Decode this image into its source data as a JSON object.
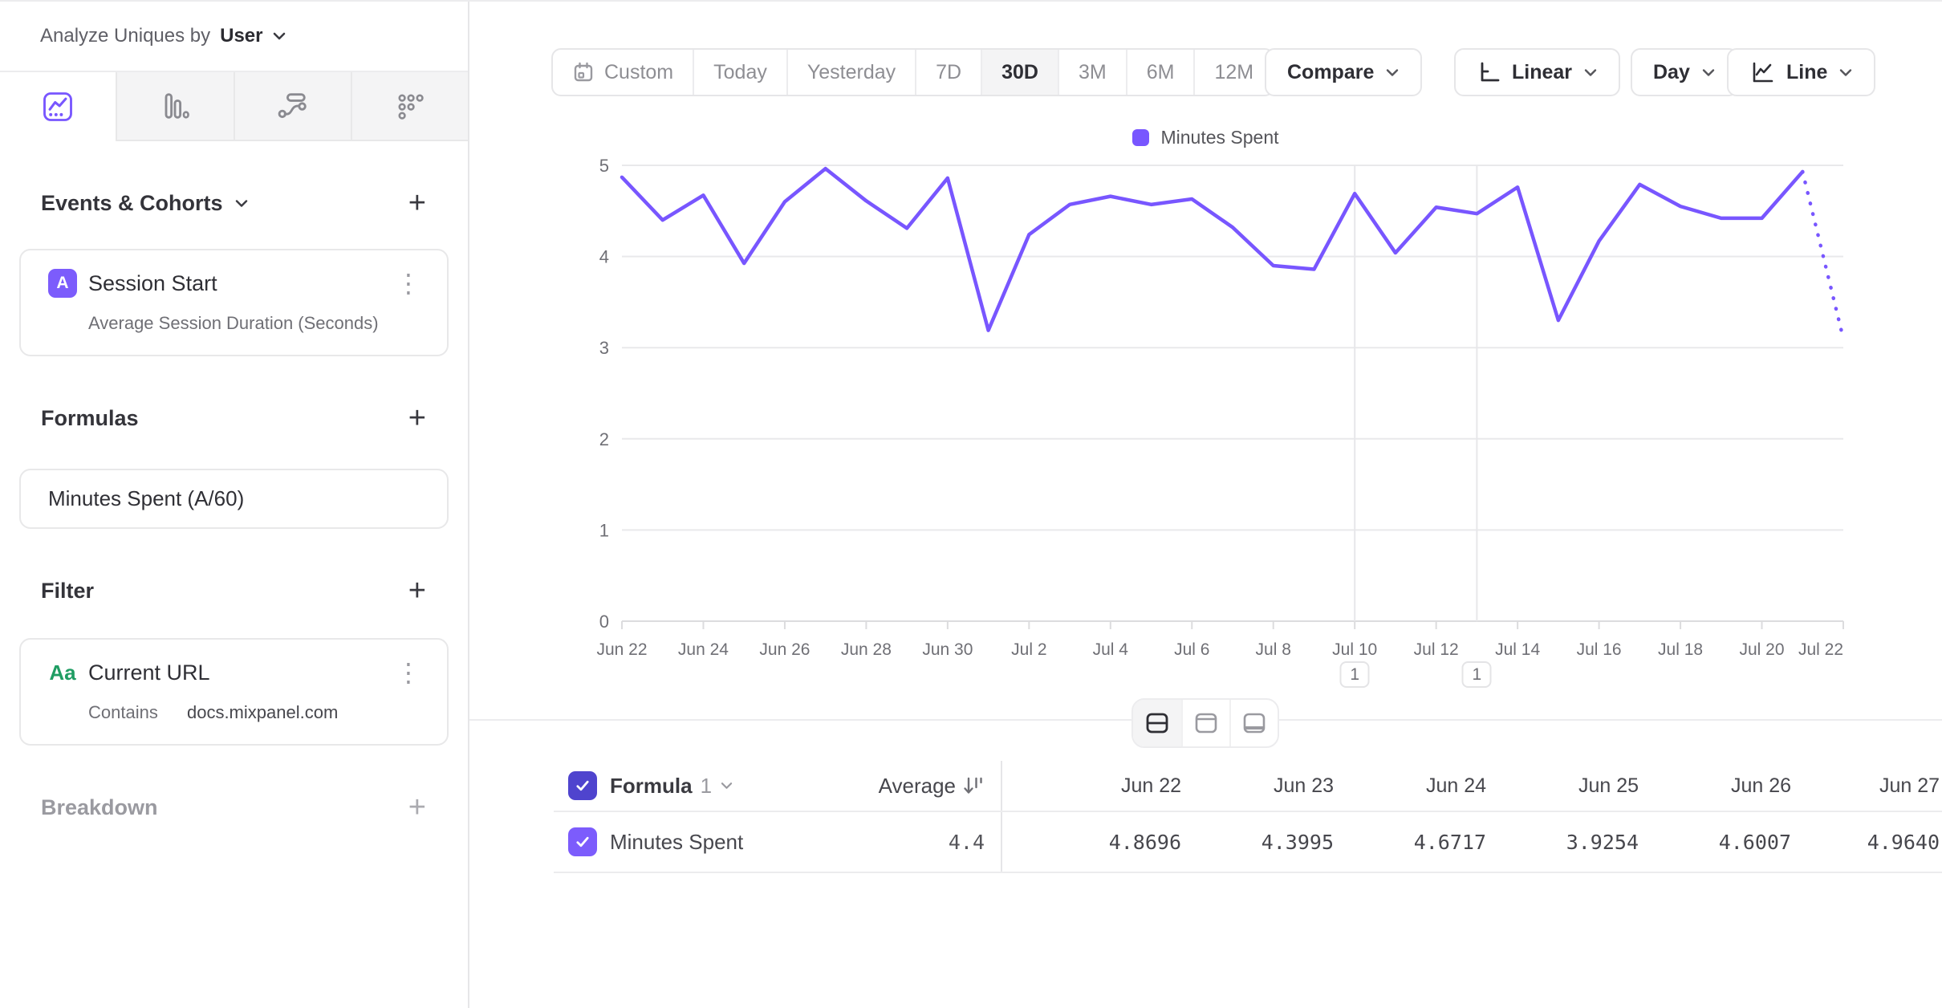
{
  "sidebar": {
    "analyze_row": {
      "label": "Analyze Uniques by",
      "value": "User"
    },
    "tabs": [
      {
        "icon": "line-chart-icon",
        "active": true
      },
      {
        "icon": "bar-chart-icon",
        "active": false
      },
      {
        "icon": "flows-icon",
        "active": false
      },
      {
        "icon": "retention-grid-icon",
        "active": false
      }
    ],
    "events_section": {
      "title": "Events & Cohorts",
      "event": {
        "badge": "A",
        "name": "Session Start",
        "measurement": "Average Session Duration (Seconds)"
      }
    },
    "formulas_section": {
      "title": "Formulas",
      "formula": "Minutes Spent (A/60)"
    },
    "filter_section": {
      "title": "Filter",
      "filter": {
        "badge": "Aa",
        "name": "Current URL",
        "operator": "Contains",
        "value": "docs.mixpanel.com"
      }
    },
    "breakdown_section": {
      "title": "Breakdown"
    }
  },
  "toolbar": {
    "date_ranges": [
      "Custom",
      "Today",
      "Yesterday",
      "7D",
      "30D",
      "3M",
      "6M",
      "12M"
    ],
    "active_range": "30D",
    "compare_label": "Compare",
    "scale_label": "Linear",
    "granularity_label": "Day",
    "chart_type_label": "Line"
  },
  "chart_data": {
    "type": "line",
    "x": [
      "Jun 22",
      "Jun 23",
      "Jun 24",
      "Jun 25",
      "Jun 26",
      "Jun 27",
      "Jun 28",
      "Jun 29",
      "Jun 30",
      "Jul 1",
      "Jul 2",
      "Jul 3",
      "Jul 4",
      "Jul 5",
      "Jul 6",
      "Jul 7",
      "Jul 8",
      "Jul 9",
      "Jul 10",
      "Jul 11",
      "Jul 12",
      "Jul 13",
      "Jul 14",
      "Jul 15",
      "Jul 16",
      "Jul 17",
      "Jul 18",
      "Jul 19",
      "Jul 20",
      "Jul 21",
      "Jul 22"
    ],
    "x_tick_indices": [
      0,
      2,
      4,
      6,
      8,
      10,
      12,
      14,
      16,
      18,
      20,
      22,
      24,
      26,
      28,
      30
    ],
    "series": [
      {
        "name": "Minutes Spent",
        "color": "#7856FF",
        "values": [
          4.8696,
          4.3995,
          4.6717,
          3.9254,
          4.6007,
          4.964,
          4.61,
          4.31,
          4.86,
          3.19,
          4.24,
          4.57,
          4.66,
          4.57,
          4.63,
          4.32,
          3.9,
          3.86,
          4.69,
          4.04,
          4.54,
          4.47,
          4.76,
          3.3,
          4.17,
          4.79,
          4.55,
          4.42,
          4.42,
          4.93,
          3.1
        ]
      }
    ],
    "dashed_from_index": 29,
    "ylim": [
      0,
      5
    ],
    "yticks": [
      0,
      1,
      2,
      3,
      4,
      5
    ],
    "grid": true,
    "vertical_gridline_indices": [
      18,
      21
    ],
    "annotations": [
      {
        "label": "1",
        "x_index": 18
      },
      {
        "label": "1",
        "x_index": 21
      }
    ],
    "legend_position": "top"
  },
  "view_toggle": {
    "options": [
      "split-view",
      "chart-only-view",
      "table-only-view"
    ],
    "active": "split-view"
  },
  "table": {
    "series_toggle": {
      "name": "Formula",
      "index": "1"
    },
    "average_label": "Average",
    "columns": [
      "Jun 22",
      "Jun 23",
      "Jun 24",
      "Jun 25",
      "Jun 26",
      "Jun 27"
    ],
    "rows": [
      {
        "label": "Minutes Spent",
        "average": "4.4",
        "values": [
          "4.8696",
          "4.3995",
          "4.6717",
          "3.9254",
          "4.6007",
          "4.9640"
        ]
      }
    ]
  },
  "colors": {
    "accent_purple": "#7856FF",
    "header_checkbox": "#4F44CE",
    "row_checkbox": "#7C5CFC",
    "string_property_green": "#1F9D63"
  }
}
